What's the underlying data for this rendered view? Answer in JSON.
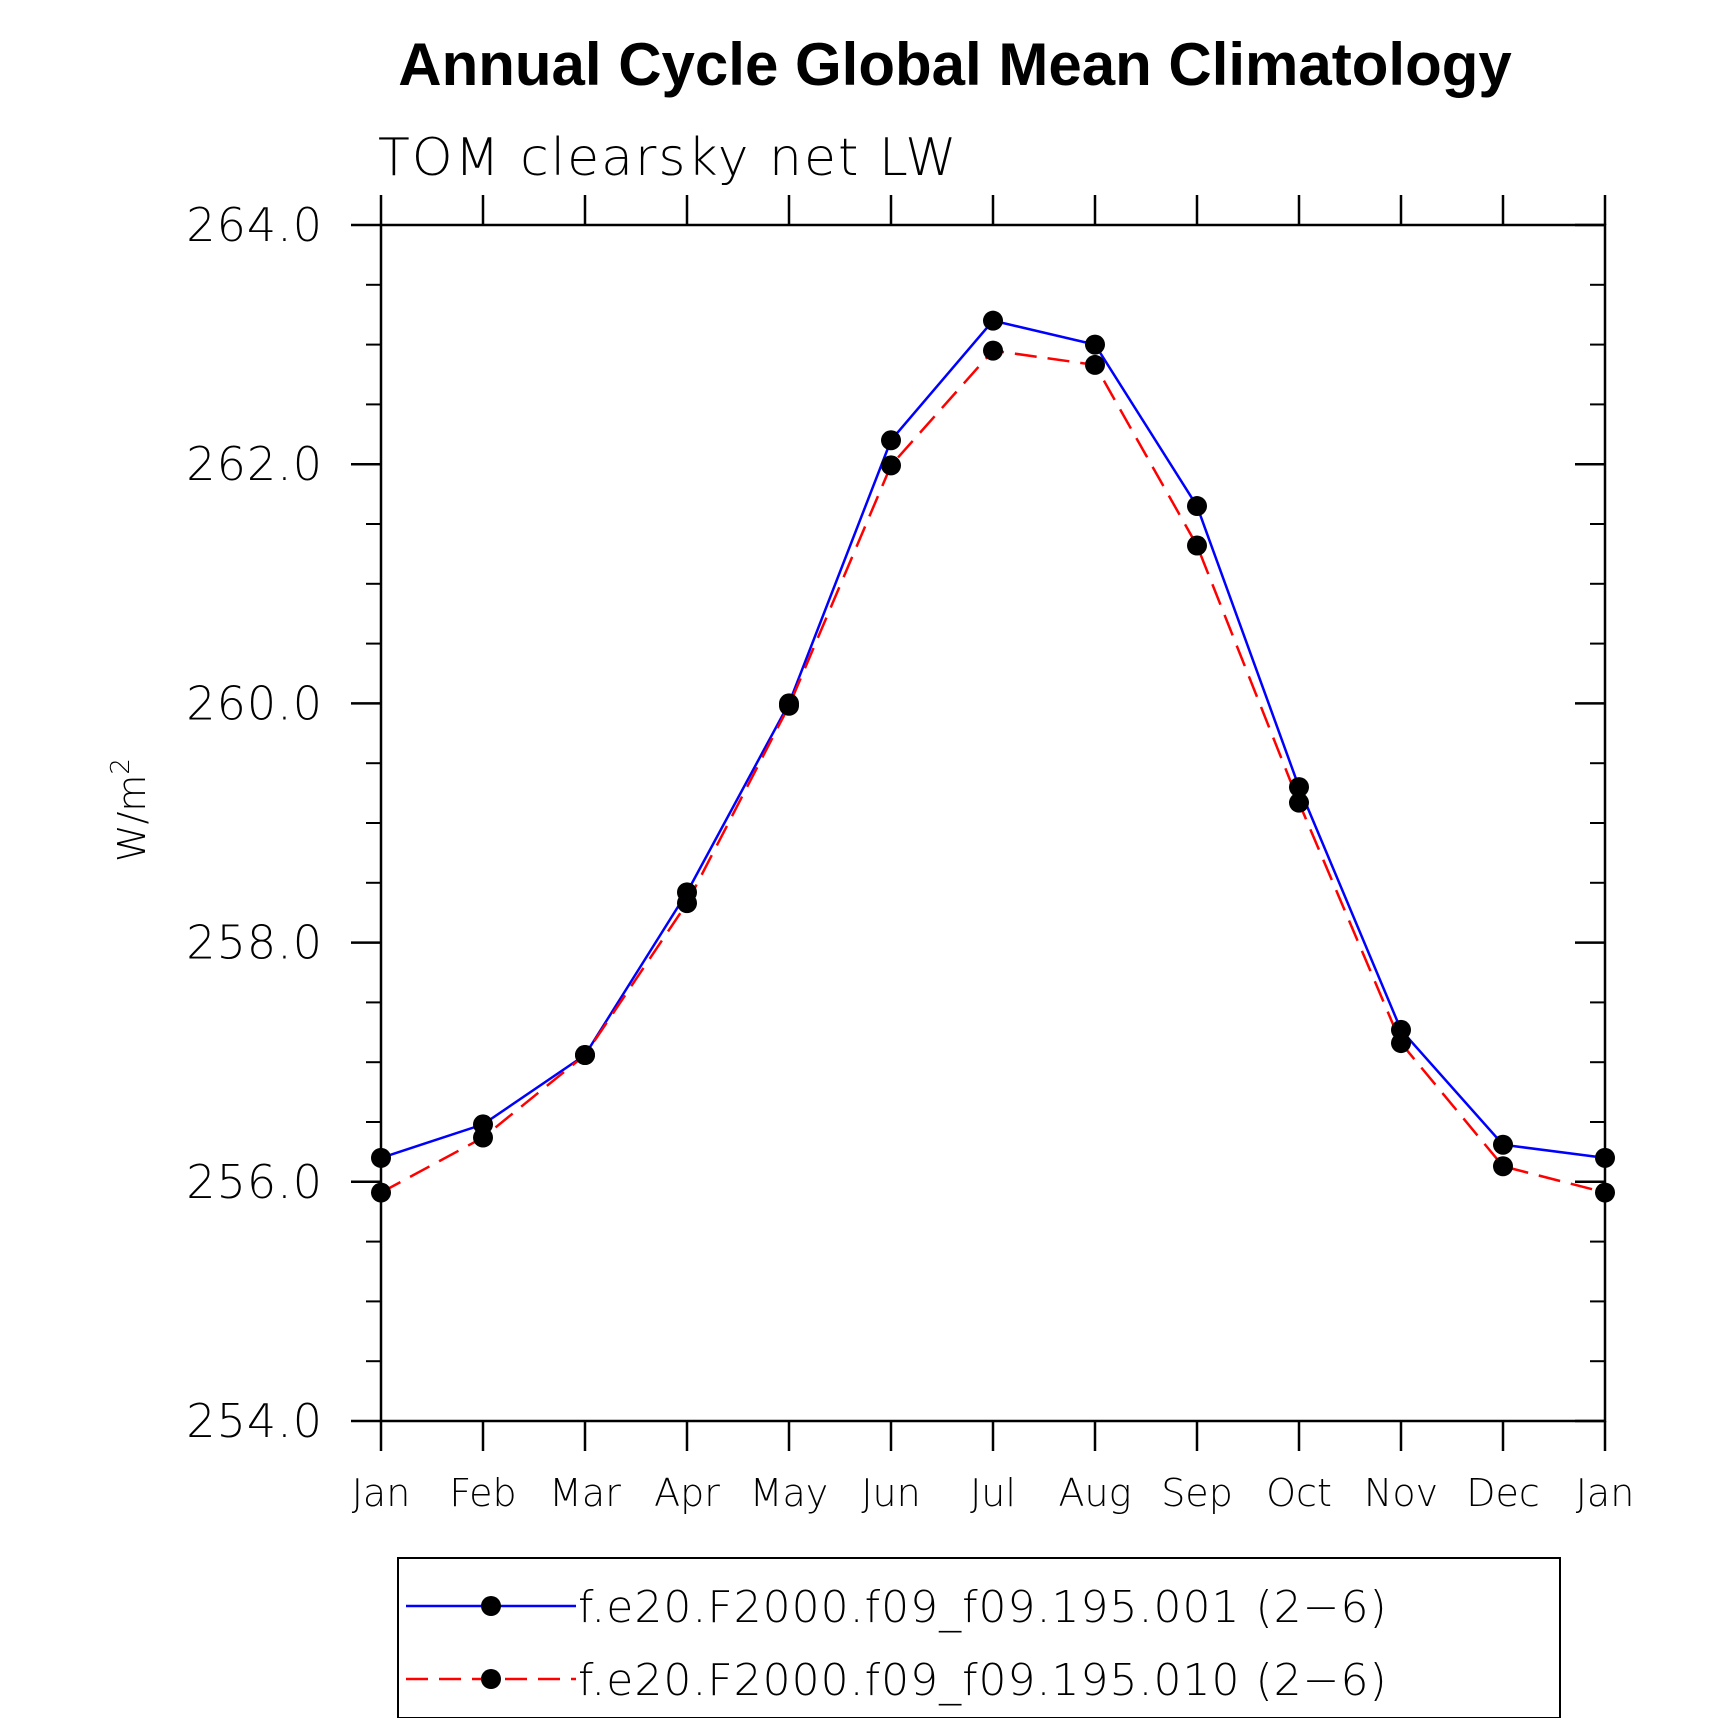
{
  "chart_data": {
    "type": "line",
    "title": "Annual Cycle Global Mean Climatology",
    "subtitle": "TOM clearsky net LW",
    "xlabel": "",
    "ylabel": {
      "base": "W/m",
      "superscript": "2"
    },
    "categories": [
      "Jan",
      "Feb",
      "Mar",
      "Apr",
      "May",
      "Jun",
      "Jul",
      "Aug",
      "Sep",
      "Oct",
      "Nov",
      "Dec",
      "Jan"
    ],
    "ylim": [
      254.0,
      264.0
    ],
    "y_major_ticks": [
      254.0,
      256.0,
      258.0,
      260.0,
      262.0,
      264.0
    ],
    "y_tick_labels": [
      "254.0",
      "256.0",
      "258.0",
      "260.0",
      "262.0",
      "264.0"
    ],
    "y_minor_step": 0.5,
    "grid": false,
    "legend_position": "bottom",
    "series": [
      {
        "name": "f.e20.F2000.f09_f09.195.001 (2−6)",
        "color": "#0000ff",
        "dash": "solid",
        "marker": "filled-circle",
        "values": [
          256.2,
          256.48,
          257.06,
          258.42,
          260.0,
          262.2,
          263.2,
          263.0,
          261.65,
          259.3,
          257.27,
          256.31,
          256.2
        ]
      },
      {
        "name": "f.e20.F2000.f09_f09.195.010 (2−6)",
        "color": "#ff0000",
        "dash": "dashed",
        "marker": "filled-circle",
        "values": [
          255.91,
          256.37,
          257.06,
          258.33,
          259.98,
          261.99,
          262.95,
          262.83,
          261.32,
          259.17,
          257.16,
          256.13,
          255.91
        ]
      }
    ]
  }
}
